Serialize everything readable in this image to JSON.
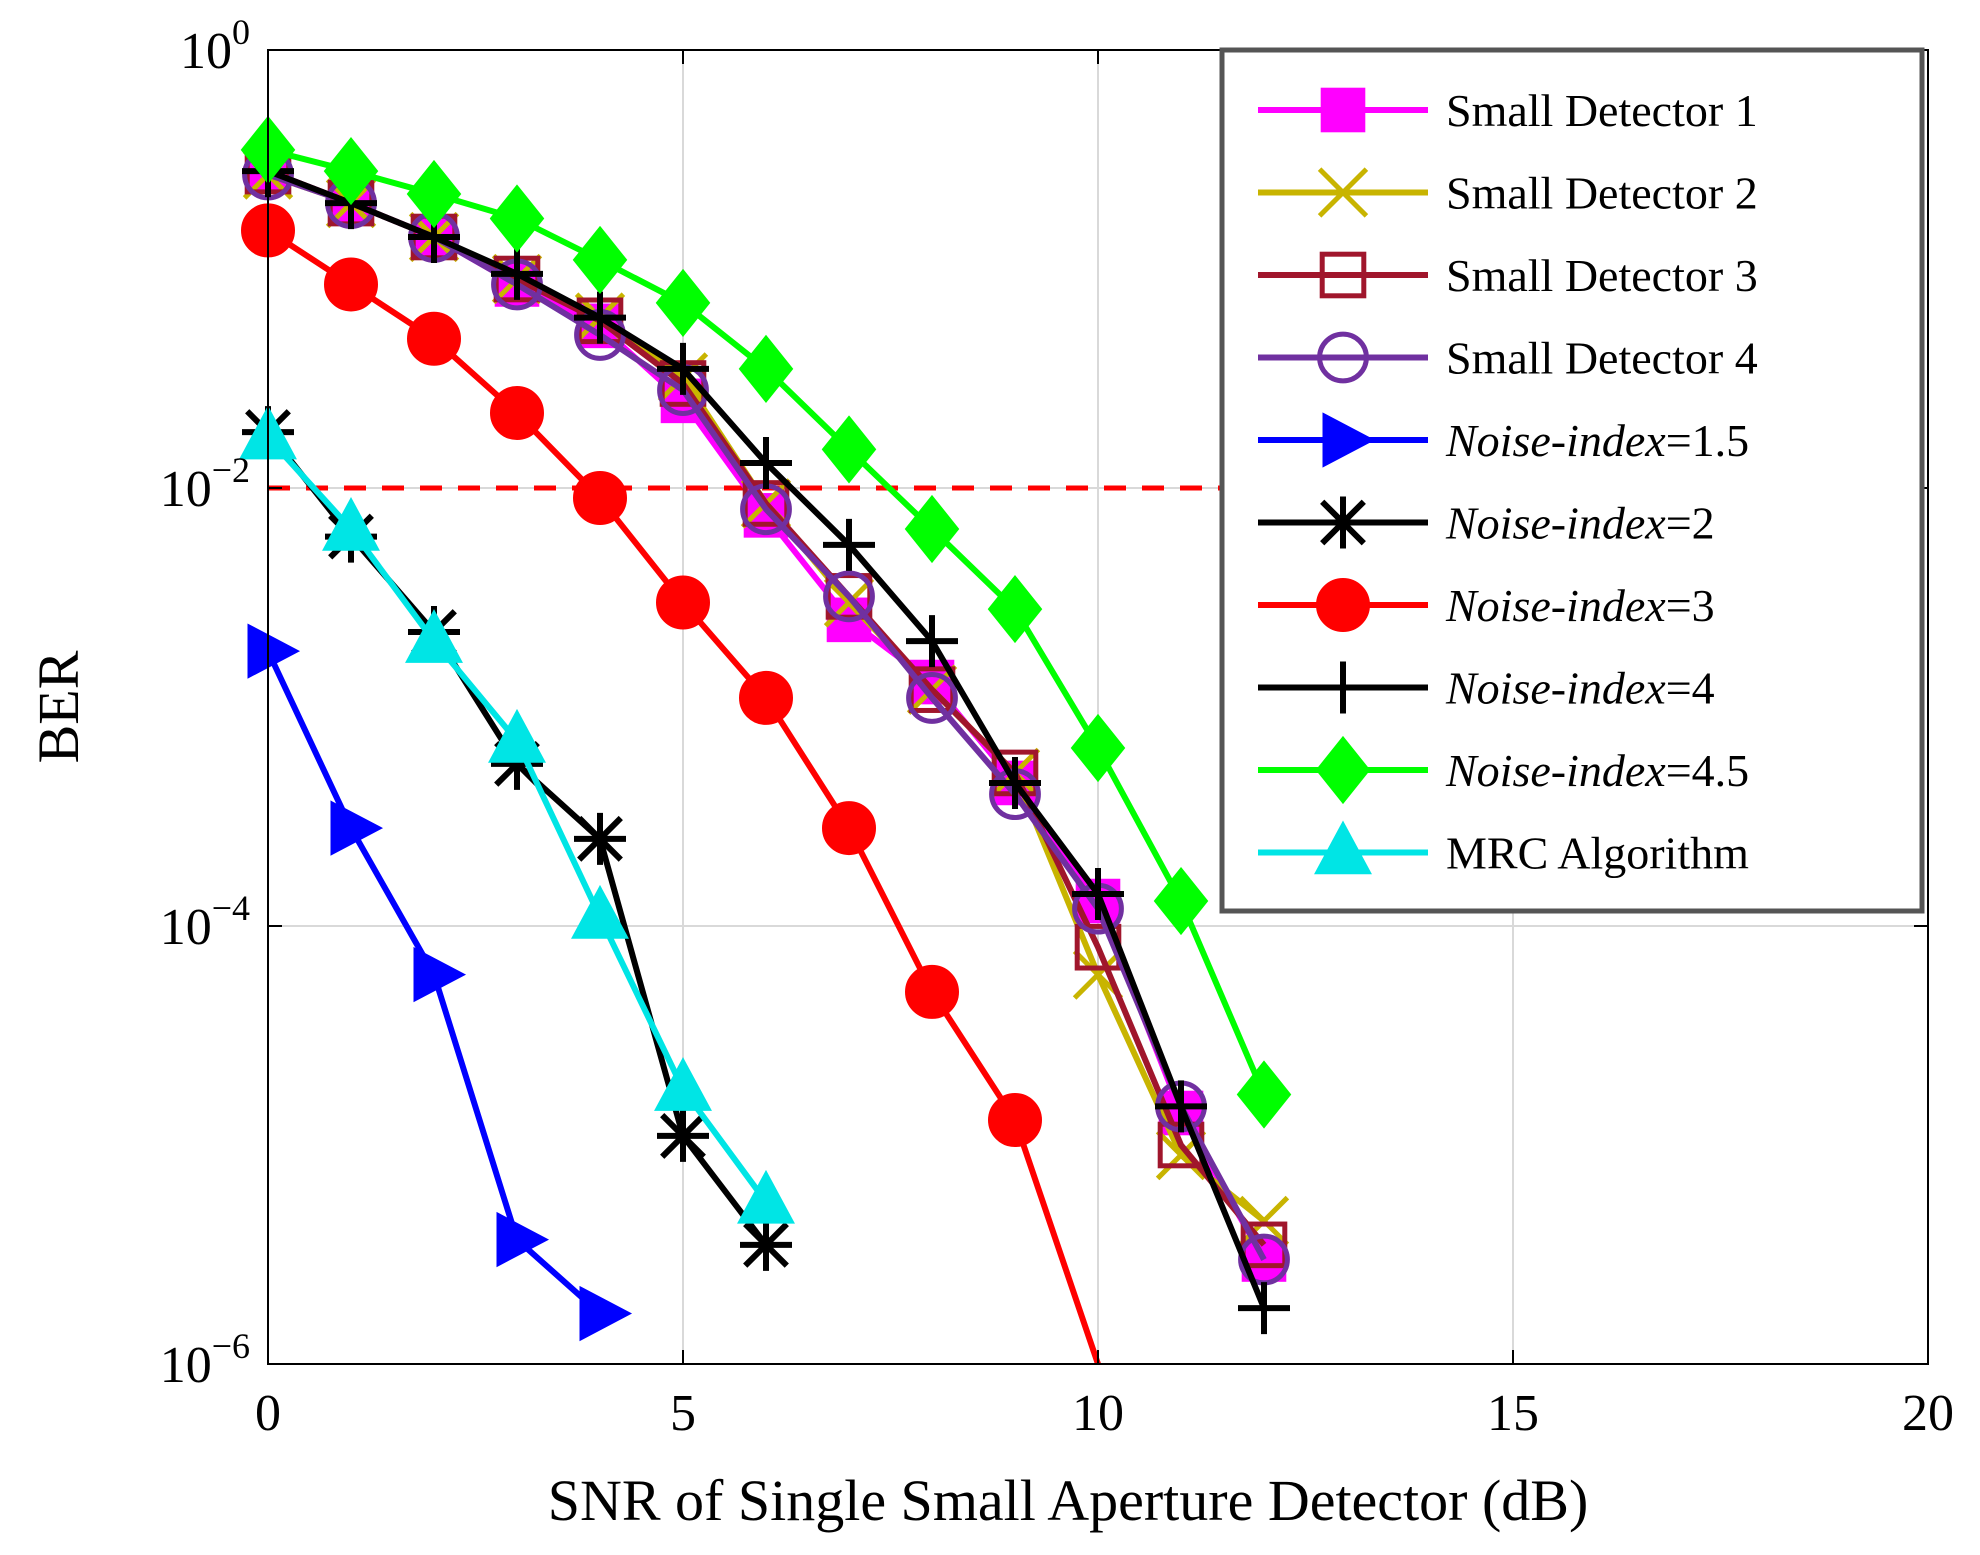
{
  "chart_data": {
    "type": "line",
    "xlabel": "SNR of Single Small Aperture Detector (dB)",
    "ylabel": "BER",
    "xlim": [
      0,
      20
    ],
    "ylim": [
      1e-06,
      1
    ],
    "yscale": "log",
    "grid": true,
    "x_ticks": [
      {
        "value": 0,
        "label": "0"
      },
      {
        "value": 5,
        "label": "5"
      },
      {
        "value": 10,
        "label": "10"
      },
      {
        "value": 15,
        "label": "15"
      },
      {
        "value": 20,
        "label": "20"
      }
    ],
    "y_ticks": [
      {
        "value": 1,
        "base": "10",
        "exp": "0"
      },
      {
        "value": 0.01,
        "base": "10",
        "exp": "−2"
      },
      {
        "value": 0.0001,
        "base": "10",
        "exp": "−4"
      },
      {
        "value": 1e-06,
        "base": "10",
        "exp": "−6"
      }
    ],
    "threshold": {
      "value": 0.01,
      "color": "#ff0000",
      "style": "dashed"
    },
    "legend_position": "top-right",
    "series": [
      {
        "name": "Small Detector 1",
        "prefix": "Small Detector 1",
        "italic": "",
        "suffix": "",
        "color": "#ff00ff",
        "marker": "square-filled",
        "x": [
          0,
          1,
          2,
          3,
          4,
          5,
          6,
          7,
          8,
          9,
          10,
          11,
          12
        ],
        "y": [
          0.28,
          0.2,
          0.14,
          0.085,
          0.055,
          0.025,
          0.0075,
          0.0025,
          0.0013,
          0.00045,
          0.00013,
          1.4e-05,
          3e-06
        ]
      },
      {
        "name": "Small Detector 2",
        "prefix": "Small Detector 2",
        "italic": "",
        "suffix": "",
        "color": "#c8b400",
        "marker": "x",
        "x": [
          0,
          1,
          2,
          3,
          4,
          5,
          6,
          7,
          8,
          9,
          10,
          11,
          12
        ],
        "y": [
          0.27,
          0.2,
          0.14,
          0.09,
          0.06,
          0.032,
          0.0085,
          0.003,
          0.0012,
          0.0005,
          6e-05,
          9e-06,
          4.5e-06
        ]
      },
      {
        "name": "Small Detector 3",
        "prefix": "Small Detector 3",
        "italic": "",
        "suffix": "",
        "color": "#a0162c",
        "marker": "square-open",
        "x": [
          0,
          1,
          2,
          3,
          4,
          5,
          6,
          7,
          8,
          9,
          10,
          11,
          12
        ],
        "y": [
          0.28,
          0.2,
          0.14,
          0.09,
          0.058,
          0.03,
          0.0085,
          0.0032,
          0.0012,
          0.0005,
          8e-05,
          1e-05,
          3.5e-06
        ]
      },
      {
        "name": "Small Detector 4",
        "prefix": "Small Detector 4",
        "italic": "",
        "suffix": "",
        "color": "#7030a0",
        "marker": "circle-open",
        "x": [
          0,
          1,
          2,
          3,
          4,
          5,
          6,
          7,
          8,
          9,
          10,
          11,
          12
        ],
        "y": [
          0.27,
          0.2,
          0.14,
          0.085,
          0.05,
          0.028,
          0.008,
          0.0032,
          0.0011,
          0.0004,
          0.00012,
          1.5e-05,
          3e-06
        ]
      },
      {
        "name": "Noise-index=1.5",
        "prefix": "",
        "italic": "Noise-index",
        "suffix": "=1.5",
        "color": "#0000ff",
        "marker": "triangle-right",
        "x": [
          0,
          1,
          2,
          3,
          4
        ],
        "y": [
          0.0018,
          0.00028,
          6e-05,
          3.7e-06,
          1.7e-06
        ]
      },
      {
        "name": "Noise-index=2",
        "prefix": "",
        "italic": "Noise-index",
        "suffix": "=2",
        "color": "#000000",
        "marker": "asterisk",
        "x": [
          0,
          1,
          2,
          3,
          4,
          5,
          6
        ],
        "y": [
          0.018,
          0.006,
          0.0022,
          0.00055,
          0.00025,
          1.1e-05,
          3.5e-06
        ]
      },
      {
        "name": "Noise-index=3",
        "prefix": "",
        "italic": "Noise-index",
        "suffix": "=3",
        "color": "#ff0000",
        "marker": "circle-filled",
        "x": [
          0,
          1,
          2,
          3,
          4,
          5,
          6,
          7,
          8,
          9,
          10
        ],
        "y": [
          0.15,
          0.085,
          0.048,
          0.022,
          0.009,
          0.003,
          0.0011,
          0.00028,
          5e-05,
          1.3e-05,
          1e-06
        ]
      },
      {
        "name": "Noise-index=4",
        "prefix": "",
        "italic": "Noise-index",
        "suffix": "=4",
        "color": "#000000",
        "marker": "plus",
        "x": [
          0,
          1,
          2,
          3,
          4,
          5,
          6,
          7,
          8,
          9,
          10,
          11,
          12
        ],
        "y": [
          0.28,
          0.2,
          0.14,
          0.095,
          0.06,
          0.035,
          0.013,
          0.0055,
          0.002,
          0.00045,
          0.00014,
          1.5e-05,
          1.8e-06
        ]
      },
      {
        "name": "Noise-index=4.5",
        "prefix": "",
        "italic": "Noise-index",
        "suffix": "=4.5",
        "color": "#00ff00",
        "marker": "diamond",
        "x": [
          0,
          1,
          2,
          3,
          4,
          5,
          6,
          7,
          8,
          9,
          10,
          11,
          12
        ],
        "y": [
          0.35,
          0.28,
          0.22,
          0.17,
          0.11,
          0.07,
          0.035,
          0.015,
          0.0065,
          0.0028,
          0.00065,
          0.00013,
          1.7e-05
        ]
      },
      {
        "name": "MRC Algorithm",
        "prefix": "MRC Algorithm",
        "italic": "",
        "suffix": "",
        "color": "#00e5e5",
        "marker": "triangle-up",
        "x": [
          0,
          1,
          2,
          3,
          4,
          5,
          6
        ],
        "y": [
          0.017,
          0.0065,
          0.002,
          0.0007,
          0.00011,
          1.8e-05,
          5.5e-06
        ]
      }
    ]
  }
}
